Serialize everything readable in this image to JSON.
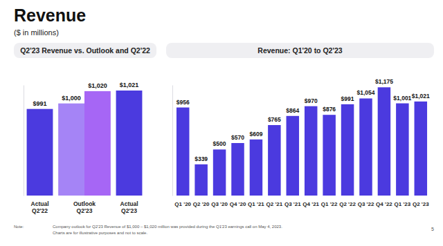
{
  "page": {
    "title": "Revenue",
    "subtitle": "($ in millions)",
    "note_label": "Note:",
    "notes": [
      "Company outlook for Q2'23 Revenue of $1,000 – $1,020 million was provided during the Q1'23 earnings call on May 4, 2023.",
      "Charts are for illustrative purposes and not to scale."
    ],
    "page_number": "5"
  },
  "chart_data": [
    {
      "type": "bar",
      "title": "Q2'23 Revenue vs. Outlook and Q2'22",
      "categories": [
        "Actual\nQ2'22",
        "Outlook\nQ2'23",
        null,
        "Actual\nQ2'23"
      ],
      "values": [
        991,
        1000,
        1020,
        1021
      ],
      "value_labels": [
        "$991",
        "$1,000",
        "$1,020",
        "$1,021"
      ],
      "colors": [
        "#4b3adf",
        "#a584f6",
        "#a666f5",
        "#4b3adf"
      ],
      "ylim": [
        850,
        1030
      ],
      "yticks": [],
      "data_labels": true,
      "tick_labels": "x"
    },
    {
      "type": "bar",
      "title": "Revenue: Q1'20 to Q2'23",
      "categories": [
        "Q1 '20",
        "Q2 '20",
        "Q3 '20",
        "Q4 '20",
        "Q1 '21",
        "Q2 '21",
        "Q3 '21",
        "Q4 '21",
        "Q1 '22",
        "Q2 '22",
        "Q3 '22",
        "Q4 '22",
        "Q1 '23",
        "Q2 '23"
      ],
      "values": [
        956,
        339,
        500,
        570,
        609,
        765,
        864,
        970,
        876,
        991,
        1054,
        1175,
        1001,
        1021
      ],
      "value_labels": [
        "$956",
        "$339",
        "$500",
        "$570",
        "$609",
        "$765",
        "$864",
        "$970",
        "$876",
        "$991",
        "$1,054",
        "$1,175",
        "$1,001",
        "$1,021"
      ],
      "color": "#4b3adf",
      "ylim": [
        0,
        1200
      ],
      "yticks": [],
      "data_labels": true,
      "tick_labels": "x"
    }
  ]
}
